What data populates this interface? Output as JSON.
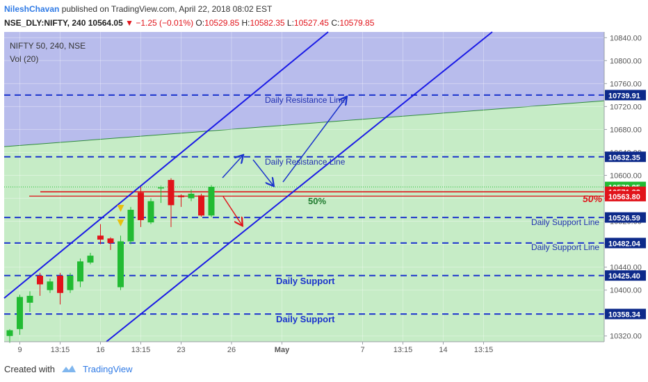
{
  "header": {
    "author": "NileshChavan",
    "published_text": "published on TradingView.com, April 22, 2018 08:02 EST",
    "symbol": "NSE_DLY:NIFTY, 240",
    "last_price": "10564.05",
    "change": "▼ −1.25 (−0.01%)",
    "open_label": "O:",
    "open": "10529.85",
    "high_label": "H:",
    "high": "10582.35",
    "low_label": "L:",
    "low": "10527.45",
    "close_label": "C:",
    "close": "10579.85"
  },
  "legend": {
    "series": "NIFTY 50, 240, NSE",
    "volume": "Vol (20)"
  },
  "footer": {
    "created_with": "Created with",
    "brand": "TradingView"
  },
  "colors": {
    "up": "#22bb33",
    "down": "#e1131a",
    "channel": "#1a1ae6",
    "dashed": "#1a33cc",
    "resistance_zone": "#b8bcec",
    "support_zone": "#c6ecc6",
    "price_bg": "#0d2a8a",
    "price_red": "#e1131a",
    "price_green": "#22bb33"
  },
  "chart_data": {
    "type": "candlestick",
    "ylim": [
      10310,
      10850
    ],
    "x_ticks": [
      {
        "label": "9",
        "i": 1
      },
      {
        "label": "13:15",
        "i": 5
      },
      {
        "label": "16",
        "i": 9
      },
      {
        "label": "13:15",
        "i": 13
      },
      {
        "label": "23",
        "i": 17
      },
      {
        "label": "26",
        "i": 22
      },
      {
        "label": "May",
        "i": 27
      },
      {
        "label": "7",
        "i": 35
      },
      {
        "label": "13:15",
        "i": 39
      },
      {
        "label": "14",
        "i": 43
      },
      {
        "label": "13:15",
        "i": 47
      }
    ],
    "y_ticks": [
      10320,
      10360,
      10400,
      10440,
      10480,
      10520,
      10560,
      10600,
      10640,
      10680,
      10720,
      10760,
      10800,
      10840
    ],
    "candles": [
      {
        "i": 0,
        "o": 10320,
        "h": 10332,
        "l": 10308,
        "c": 10330
      },
      {
        "i": 1,
        "o": 10332,
        "h": 10392,
        "l": 10322,
        "c": 10388
      },
      {
        "i": 2,
        "o": 10378,
        "h": 10398,
        "l": 10362,
        "c": 10390
      },
      {
        "i": 3,
        "o": 10425,
        "h": 10430,
        "l": 10390,
        "c": 10410
      },
      {
        "i": 4,
        "o": 10400,
        "h": 10420,
        "l": 10395,
        "c": 10415
      },
      {
        "i": 5,
        "o": 10425,
        "h": 10430,
        "l": 10375,
        "c": 10395
      },
      {
        "i": 6,
        "o": 10400,
        "h": 10430,
        "l": 10395,
        "c": 10425
      },
      {
        "i": 7,
        "o": 10415,
        "h": 10455,
        "l": 10405,
        "c": 10450
      },
      {
        "i": 8,
        "o": 10448,
        "h": 10465,
        "l": 10445,
        "c": 10460
      },
      {
        "i": 9,
        "o": 10495,
        "h": 10515,
        "l": 10480,
        "c": 10488
      },
      {
        "i": 10,
        "o": 10490,
        "h": 10492,
        "l": 10470,
        "c": 10482
      },
      {
        "i": 11,
        "o": 10405,
        "h": 10495,
        "l": 10400,
        "c": 10485
      },
      {
        "i": 12,
        "o": 10485,
        "h": 10545,
        "l": 10480,
        "c": 10540
      },
      {
        "i": 13,
        "o": 10570,
        "h": 10580,
        "l": 10510,
        "c": 10522
      },
      {
        "i": 14,
        "o": 10518,
        "h": 10560,
        "l": 10515,
        "c": 10555
      },
      {
        "i": 15,
        "o": 10578,
        "h": 10582,
        "l": 10552,
        "c": 10579
      },
      {
        "i": 16,
        "o": 10592,
        "h": 10595,
        "l": 10510,
        "c": 10548
      },
      {
        "i": 17,
        "o": 10565,
        "h": 10567,
        "l": 10545,
        "c": 10562
      },
      {
        "i": 18,
        "o": 10560,
        "h": 10575,
        "l": 10555,
        "c": 10568
      },
      {
        "i": 19,
        "o": 10565,
        "h": 10568,
        "l": 10528,
        "c": 10530
      },
      {
        "i": 20,
        "o": 10530,
        "h": 10583,
        "l": 10527,
        "c": 10580
      }
    ],
    "horizontal_lines": [
      {
        "price": 10739.91,
        "label": "10739.91",
        "style": "dashed"
      },
      {
        "price": 10632.35,
        "label": "10632.35",
        "style": "dashed"
      },
      {
        "price": 10526.59,
        "label": "10526.59",
        "style": "dashed"
      },
      {
        "price": 10482.04,
        "label": "10482.04",
        "style": "dashed"
      },
      {
        "price": 10425.4,
        "label": "10425.40",
        "style": "dashed"
      },
      {
        "price": 10358.34,
        "label": "10358.34",
        "style": "dashed"
      }
    ],
    "price_labels": [
      {
        "price": 10579.85,
        "label": "10579.85",
        "bg": "green"
      },
      {
        "price": 10571.32,
        "label": "10571.32",
        "bg": "red"
      },
      {
        "price": 10563.8,
        "label": "10563.80",
        "bg": "red"
      }
    ],
    "annotations": {
      "daily_resistance_1": "Daily Resistance Line",
      "daily_resistance_2": "Daily Resistance Line",
      "daily_support_line_1": "Daily Support Line",
      "daily_support_line_2": "Daily Support Line",
      "daily_support_1": "Daily Support",
      "daily_support_2": "Daily Support",
      "fib_mid": "50%",
      "fib_right": "50%"
    }
  }
}
